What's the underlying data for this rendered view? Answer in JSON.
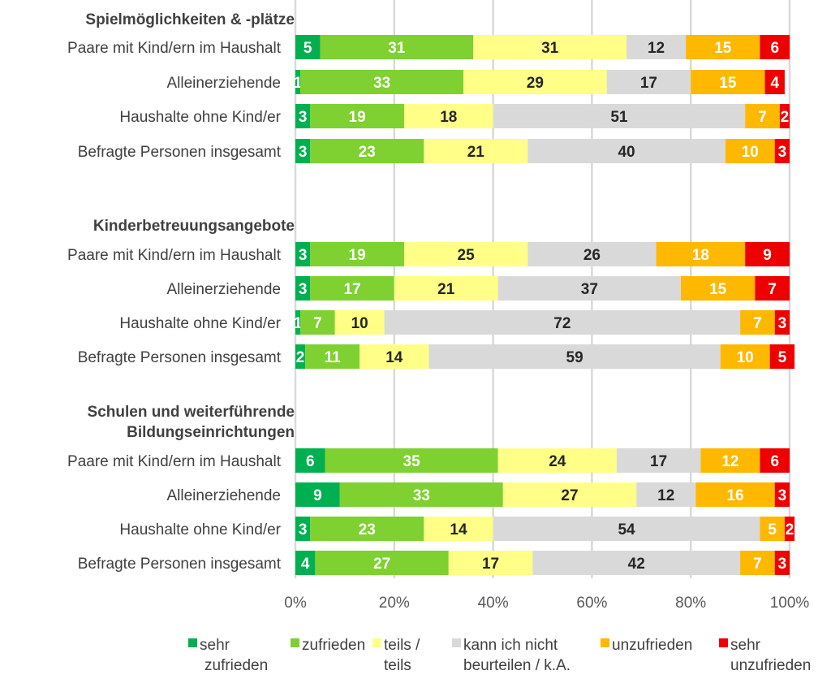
{
  "chart_data": {
    "type": "bar",
    "orientation": "horizontal",
    "stacked": "100%",
    "title": "",
    "xlabel": "",
    "ylabel": "",
    "xlim": [
      0,
      100
    ],
    "x_ticks": [
      "0%",
      "20%",
      "40%",
      "60%",
      "80%",
      "100%"
    ],
    "grid": true,
    "legend_position": "bottom",
    "series": [
      {
        "name": "sehr zufrieden",
        "legend_lines": [
          "sehr",
          "zufrieden"
        ],
        "color": "#00B050",
        "label_color": "#ffffff"
      },
      {
        "name": "zufrieden",
        "legend_lines": [
          "zufrieden"
        ],
        "color": "#7ED130",
        "label_color": "#ffffff"
      },
      {
        "name": "teils / teils",
        "legend_lines": [
          "teils /",
          "teils"
        ],
        "color": "#FFFF88",
        "label_color": "#262626"
      },
      {
        "name": "kann ich nicht beurteilen / k.A.",
        "legend_lines": [
          "kann ich nicht",
          "beurteilen / k.A."
        ],
        "color": "#D9D9D9",
        "label_color": "#262626"
      },
      {
        "name": "unzufrieden",
        "legend_lines": [
          "unzufrieden"
        ],
        "color": "#FFB800",
        "label_color": "#ffffff"
      },
      {
        "name": "sehr unzufrieden",
        "legend_lines": [
          "sehr",
          "unzufrieden"
        ],
        "color": "#EE0000",
        "label_color": "#ffffff"
      }
    ],
    "groups": [
      {
        "title_lines": [
          "Spielmöglichkeiten & -plätze"
        ],
        "rows": [
          {
            "label": "Paare mit Kind/ern im Haushalt",
            "values": [
              5,
              31,
              31,
              12,
              15,
              6
            ]
          },
          {
            "label": "Alleinerziehende",
            "values": [
              1,
              33,
              29,
              17,
              15,
              4
            ]
          },
          {
            "label": "Haushalte ohne Kind/er",
            "values": [
              3,
              19,
              18,
              51,
              7,
              2
            ]
          },
          {
            "label": "Befragte Personen insgesamt",
            "values": [
              3,
              23,
              21,
              40,
              10,
              3
            ]
          }
        ]
      },
      {
        "title_lines": [
          "Kinderbetreuungsangebote"
        ],
        "rows": [
          {
            "label": "Paare mit Kind/ern im Haushalt",
            "values": [
              3,
              19,
              25,
              26,
              18,
              9
            ]
          },
          {
            "label": "Alleinerziehende",
            "values": [
              3,
              17,
              21,
              37,
              15,
              7
            ]
          },
          {
            "label": "Haushalte ohne Kind/er",
            "values": [
              1,
              7,
              10,
              72,
              7,
              3
            ]
          },
          {
            "label": "Befragte Personen insgesamt",
            "values": [
              2,
              11,
              14,
              59,
              10,
              5
            ]
          }
        ]
      },
      {
        "title_lines": [
          "Schulen und weiterführende",
          "Bildungseinrichtungen"
        ],
        "rows": [
          {
            "label": "Paare mit Kind/ern im Haushalt",
            "values": [
              6,
              35,
              24,
              17,
              12,
              6
            ]
          },
          {
            "label": "Alleinerziehende",
            "values": [
              9,
              33,
              27,
              12,
              16,
              3
            ]
          },
          {
            "label": "Haushalte ohne Kind/er",
            "values": [
              3,
              23,
              14,
              54,
              5,
              2
            ]
          },
          {
            "label": "Befragte Personen insgesamt",
            "values": [
              4,
              27,
              17,
              42,
              7,
              3
            ]
          }
        ]
      }
    ]
  }
}
